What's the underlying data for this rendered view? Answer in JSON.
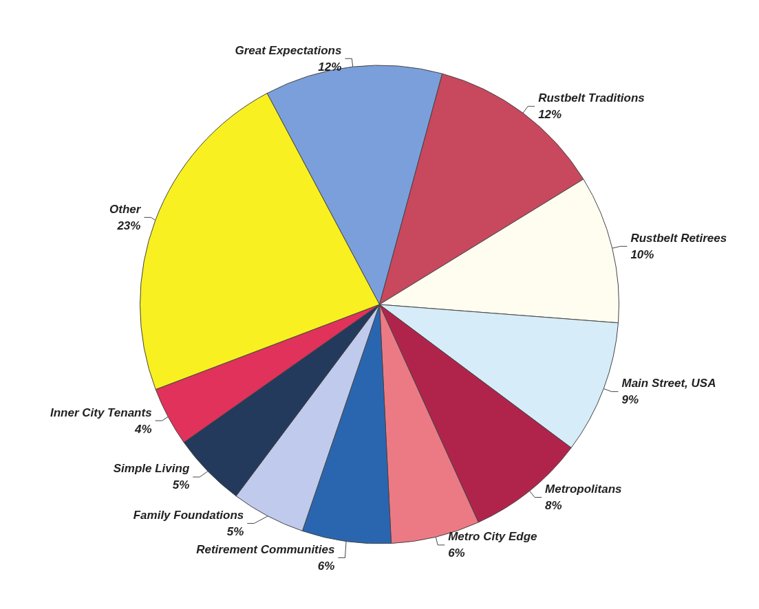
{
  "chart_data": {
    "type": "pie",
    "categories": [
      "Great Expectations",
      "Rustbelt Traditions",
      "Rustbelt Retirees",
      "Main Street, USA",
      "Metropolitans",
      "Metro City Edge",
      "Retirement Communities",
      "Family Foundations",
      "Simple Living",
      "Inner City Tenants",
      "Other"
    ],
    "values": [
      12,
      12,
      10,
      9,
      8,
      6,
      6,
      5,
      5,
      4,
      23
    ],
    "value_labels": [
      "12%",
      "12%",
      "10%",
      "9%",
      "8%",
      "6%",
      "6%",
      "5%",
      "5%",
      "4%",
      "23%"
    ],
    "colors": [
      "#7b9fdb",
      "#c8485e",
      "#fffdf0",
      "#d6ecf8",
      "#b0244c",
      "#ec7a85",
      "#2a66b0",
      "#c0caec",
      "#233a5c",
      "#e0325a",
      "#f8f020"
    ],
    "legend": false
  }
}
